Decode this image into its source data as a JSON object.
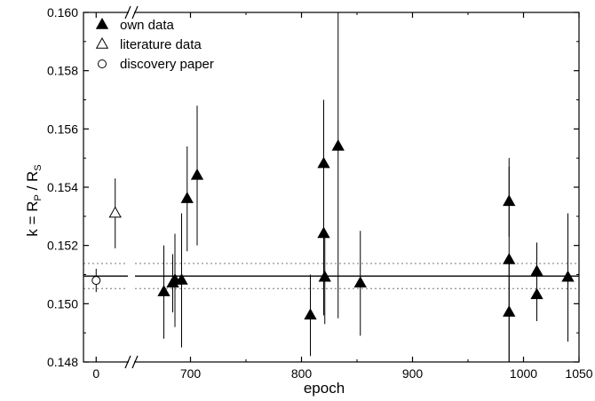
{
  "chart_data": {
    "type": "scatter",
    "xlabel": "epoch",
    "ylabel_main": "k = R",
    "ylabel_sub1": "P",
    "ylabel_mid": " / R",
    "ylabel_sub2": "S",
    "ylim": [
      0.148,
      0.16
    ],
    "y_ticks": [
      "0.148",
      "0.150",
      "0.152",
      "0.154",
      "0.156",
      "0.158",
      "0.160"
    ],
    "x_segment1": {
      "range": [
        -20,
        50
      ],
      "ticks": [
        "0"
      ],
      "tick_values": [
        0
      ]
    },
    "x_segment2": {
      "range": [
        650,
        1050
      ],
      "ticks": [
        "700",
        "800",
        "900",
        "1000",
        "1050"
      ],
      "tick_values": [
        700,
        800,
        900,
        1000,
        1050
      ]
    },
    "axis_break": true,
    "mean_k": 0.15095,
    "mean_k_error": 0.00043,
    "legend_position": "top-left",
    "series": [
      {
        "name": "own data",
        "marker": "filled-triangle",
        "points": [
          {
            "x": 676,
            "y": 0.1504,
            "err": 0.0016
          },
          {
            "x": 684,
            "y": 0.1507,
            "err": 0.001
          },
          {
            "x": 686,
            "y": 0.1508,
            "err": 0.0016
          },
          {
            "x": 692,
            "y": 0.1508,
            "err": 0.0023
          },
          {
            "x": 697,
            "y": 0.1536,
            "err": 0.0018
          },
          {
            "x": 706,
            "y": 0.1544,
            "err": 0.0024
          },
          {
            "x": 808,
            "y": 0.1496,
            "err": 0.0014
          },
          {
            "x": 820,
            "y": 0.1548,
            "err": 0.0022
          },
          {
            "x": 820,
            "y": 0.1524,
            "err": 0.0028
          },
          {
            "x": 821,
            "y": 0.1509,
            "err": 0.0016
          },
          {
            "x": 833,
            "y": 0.1554,
            "err": 0.0059
          },
          {
            "x": 853,
            "y": 0.1507,
            "err": 0.0018
          },
          {
            "x": 987,
            "y": 0.1535,
            "err": 0.0012
          },
          {
            "x": 987,
            "y": 0.1515,
            "err": 0.0035
          },
          {
            "x": 987,
            "y": 0.1497,
            "err": 0.002
          },
          {
            "x": 1012,
            "y": 0.1511,
            "err": 0.001
          },
          {
            "x": 1012,
            "y": 0.1503,
            "err": 0.0009
          },
          {
            "x": 1040,
            "y": 0.1509,
            "err": 0.0022
          }
        ]
      },
      {
        "name": "literature data",
        "marker": "open-triangle",
        "points": [
          {
            "x": 30,
            "y": 0.1531,
            "err": 0.0012
          }
        ]
      },
      {
        "name": "discovery paper",
        "marker": "open-circle",
        "points": [
          {
            "x": 0,
            "y": 0.1508,
            "err": 0.0004
          }
        ]
      }
    ]
  }
}
